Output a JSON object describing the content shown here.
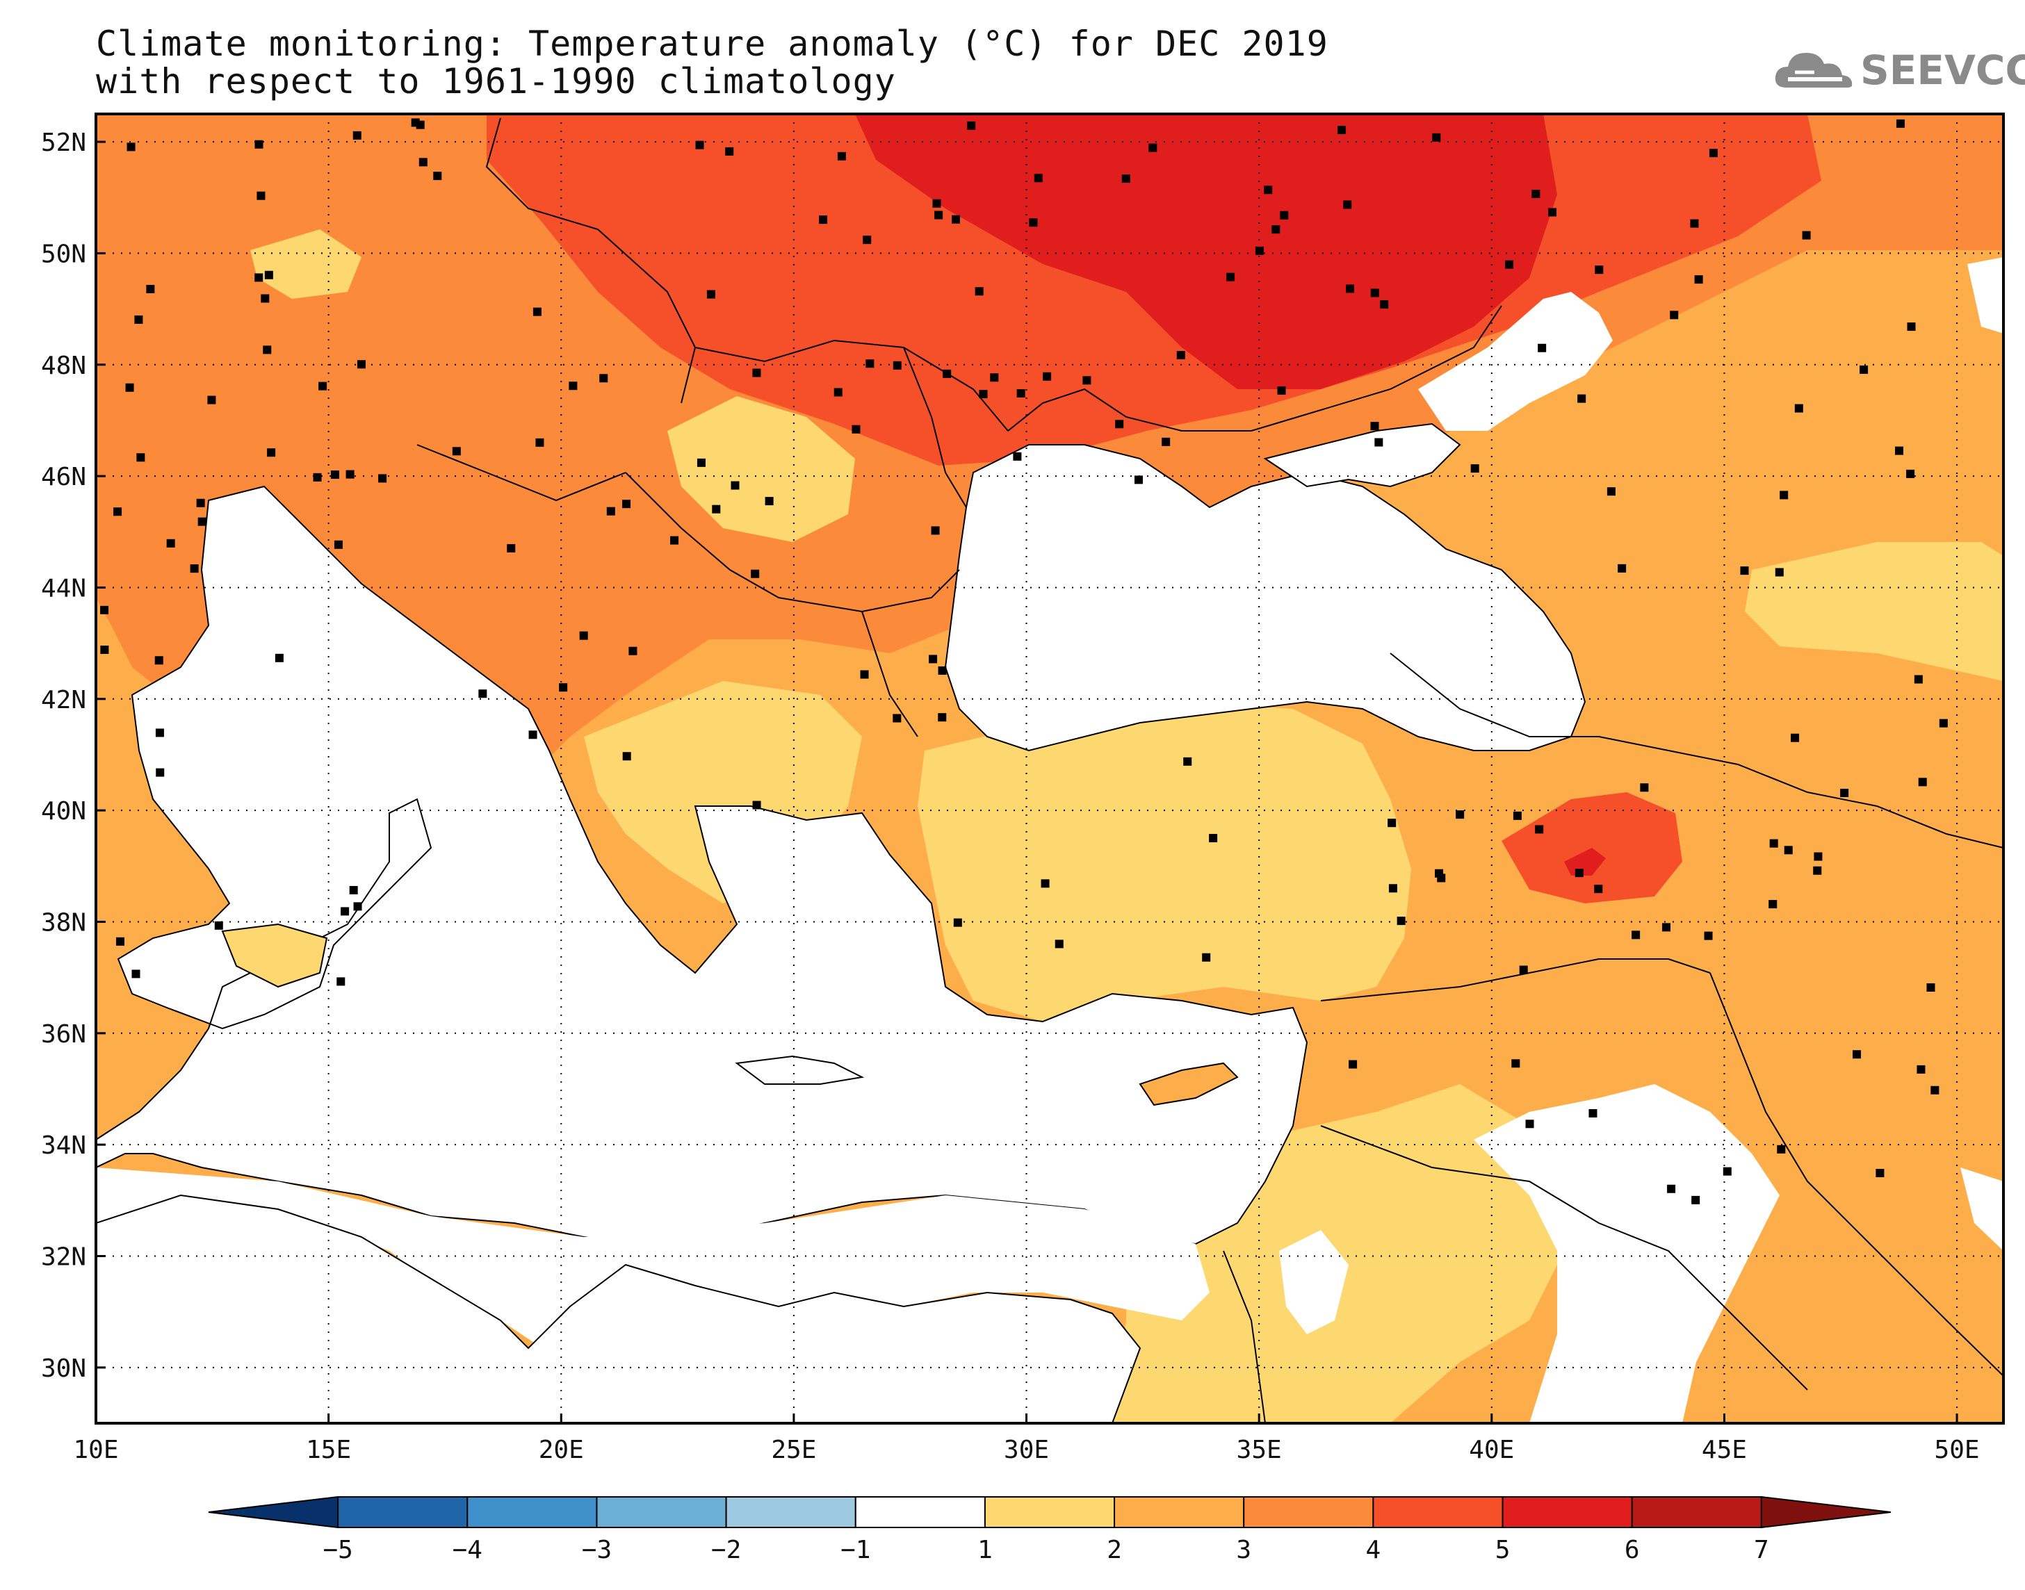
{
  "title_line1": "Climate monitoring: Temperature anomaly (°C) for DEC 2019",
  "title_line2": "with respect to 1961-1990 climatology",
  "logo_text": "SEEVCCC",
  "map": {
    "lon_range": [
      10,
      51
    ],
    "lat_range": [
      29,
      52.5
    ],
    "lon_ticks": [
      "10E",
      "15E",
      "20E",
      "25E",
      "30E",
      "35E",
      "40E",
      "45E",
      "50E"
    ],
    "lat_ticks": [
      "52N",
      "50N",
      "48N",
      "46N",
      "44N",
      "42N",
      "40N",
      "38N",
      "36N",
      "34N",
      "32N",
      "30N"
    ],
    "gridlines": "dotted",
    "land_mask": "white sea",
    "stations_marker": "black square"
  },
  "colorbar": {
    "labels": [
      "-5",
      "-4",
      "-3",
      "-2",
      "-1",
      "1",
      "2",
      "3",
      "4",
      "5",
      "6",
      "7"
    ],
    "colors": [
      "#08306b",
      "#1f65a8",
      "#3f8fcb",
      "#6baed6",
      "#9ecae1",
      "#ffffff",
      "#fdd870",
      "#fdae4b",
      "#fb8a3a",
      "#f5502a",
      "#e01e1e",
      "#b81a1a",
      "#80100e"
    ]
  },
  "colors": {
    "anomaly_1_2": "#fdd870",
    "anomaly_2_3": "#fdae4b",
    "anomaly_3_4": "#fb8a3a",
    "anomaly_4_5": "#f5502a",
    "anomaly_5_6": "#e01e1e",
    "sea": "#ffffff",
    "coast": "#000000"
  }
}
